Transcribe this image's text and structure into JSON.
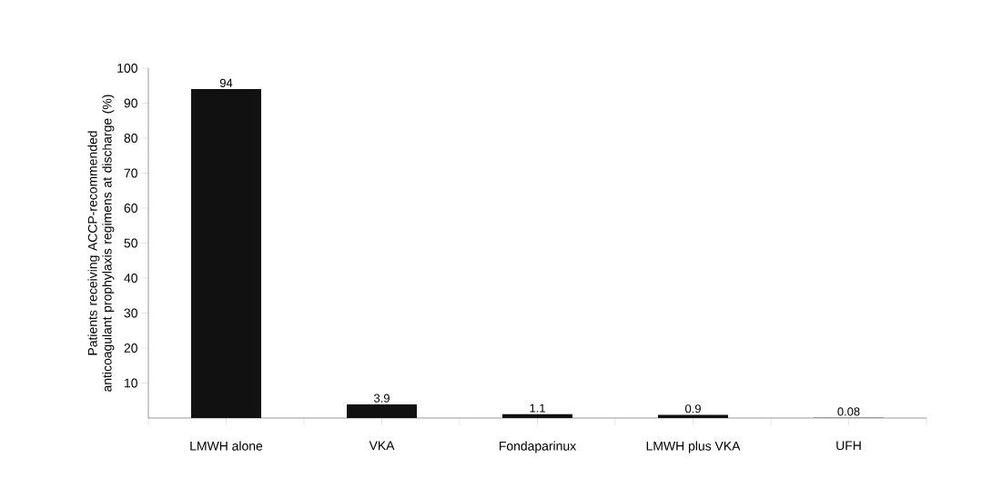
{
  "chart_data": {
    "type": "bar",
    "ylabel": "Patients receiving ACCP-recommended anticoagulant prophylaxis regimens at discharge (%)",
    "categories": [
      "LMWH alone",
      "VKA",
      "Fondaparinux",
      "LMWH plus VKA",
      "UFH"
    ],
    "values": [
      94,
      3.9,
      1.1,
      0.9,
      0.08
    ],
    "color": "#111111",
    "ylim": [
      0,
      100
    ],
    "yticks": [
      10,
      20,
      30,
      40,
      50,
      60,
      70,
      80,
      90,
      100
    ],
    "data_labels": true
  }
}
